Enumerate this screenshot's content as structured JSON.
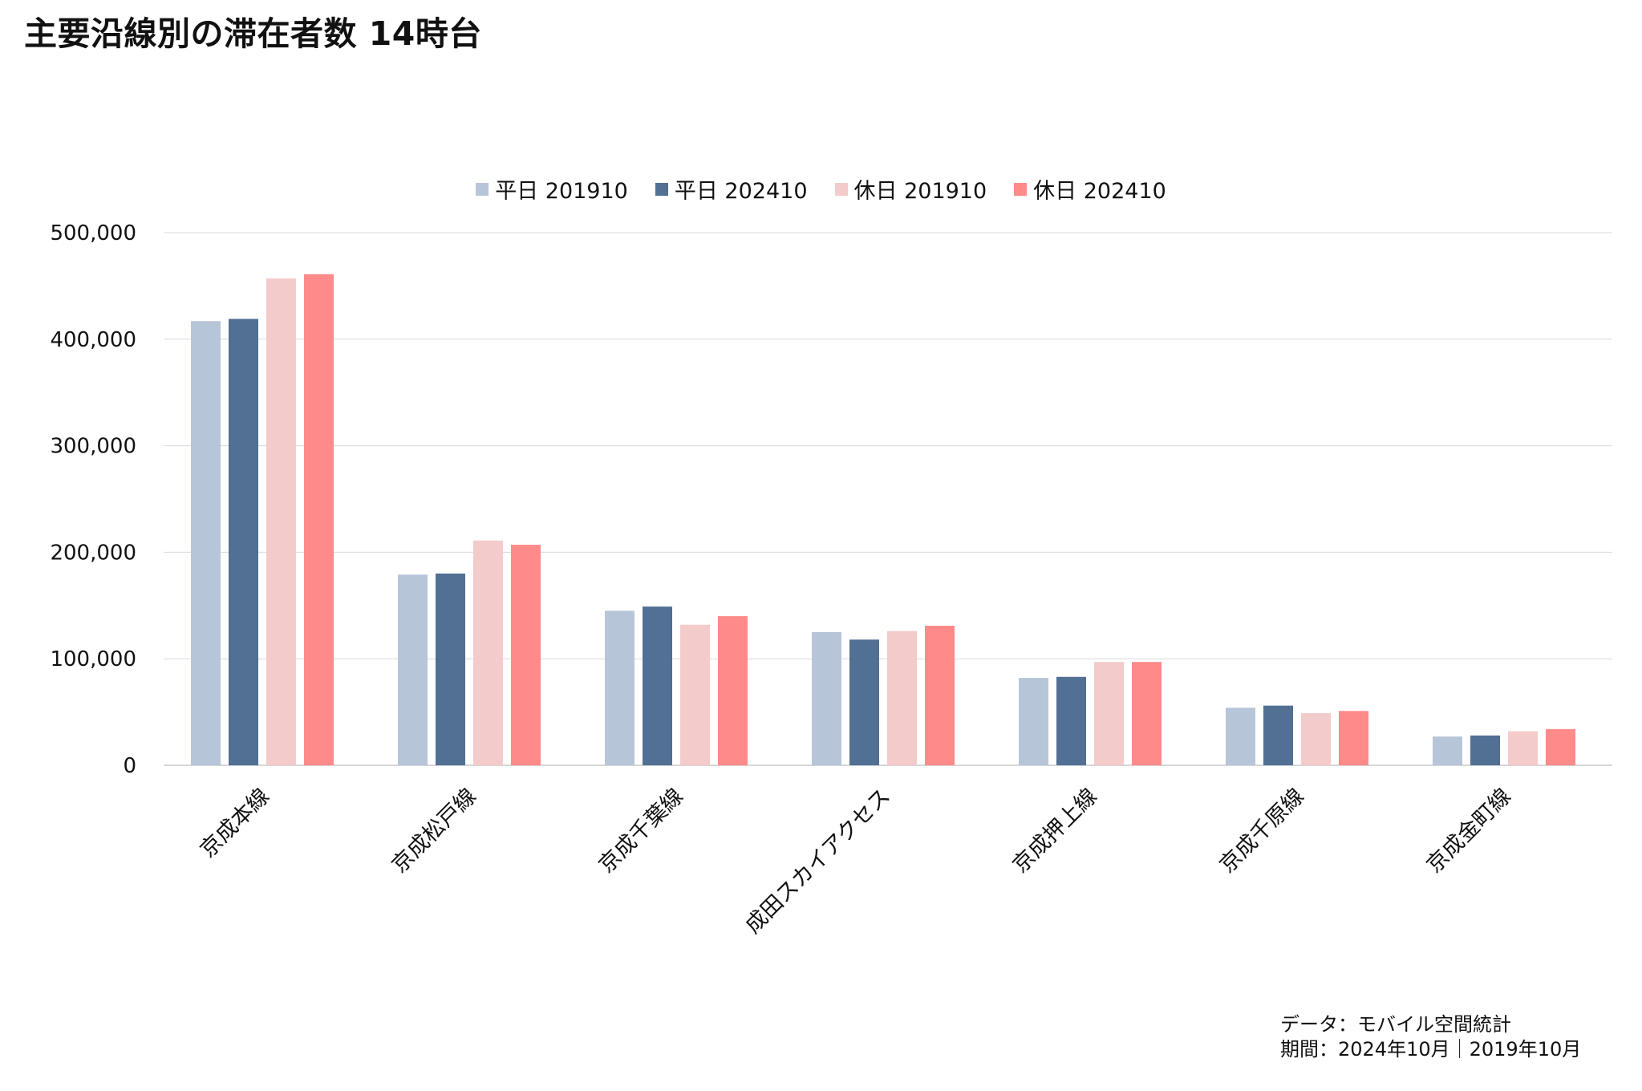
{
  "colors": [
    "#b7c5d9",
    "#526f94",
    "#f4cbcb",
    "#fe8a8a"
  ],
  "source": {
    "line1": "データ：モバイル空間統計",
    "line2": "期間：2024年10月｜2019年10月"
  },
  "chart_data": {
    "type": "bar",
    "title": "主要沿線別の滞在者数 14時台",
    "xlabel": "",
    "ylabel": "",
    "ylim": [
      0,
      500000
    ],
    "yticks": [
      0,
      100000,
      200000,
      300000,
      400000,
      500000
    ],
    "ytick_labels": [
      "0",
      "100,000",
      "200,000",
      "300,000",
      "400,000",
      "500,000"
    ],
    "grid": true,
    "legend_position": "top-center",
    "categories": [
      "京成本線",
      "京成松戸線",
      "京成千葉線",
      "成田スカイアクセス",
      "京成押上線",
      "京成千原線",
      "京成金町線"
    ],
    "series": [
      {
        "name": "平日 201910",
        "values": [
          417000,
          179000,
          145000,
          125000,
          82000,
          54000,
          27000
        ]
      },
      {
        "name": "平日 202410",
        "values": [
          419000,
          180000,
          149000,
          118000,
          83000,
          56000,
          28000
        ]
      },
      {
        "name": "休日 201910",
        "values": [
          457000,
          211000,
          132000,
          126000,
          97000,
          49000,
          32000
        ]
      },
      {
        "name": "休日 202410",
        "values": [
          461000,
          207000,
          140000,
          131000,
          97000,
          51000,
          34000
        ]
      }
    ]
  }
}
